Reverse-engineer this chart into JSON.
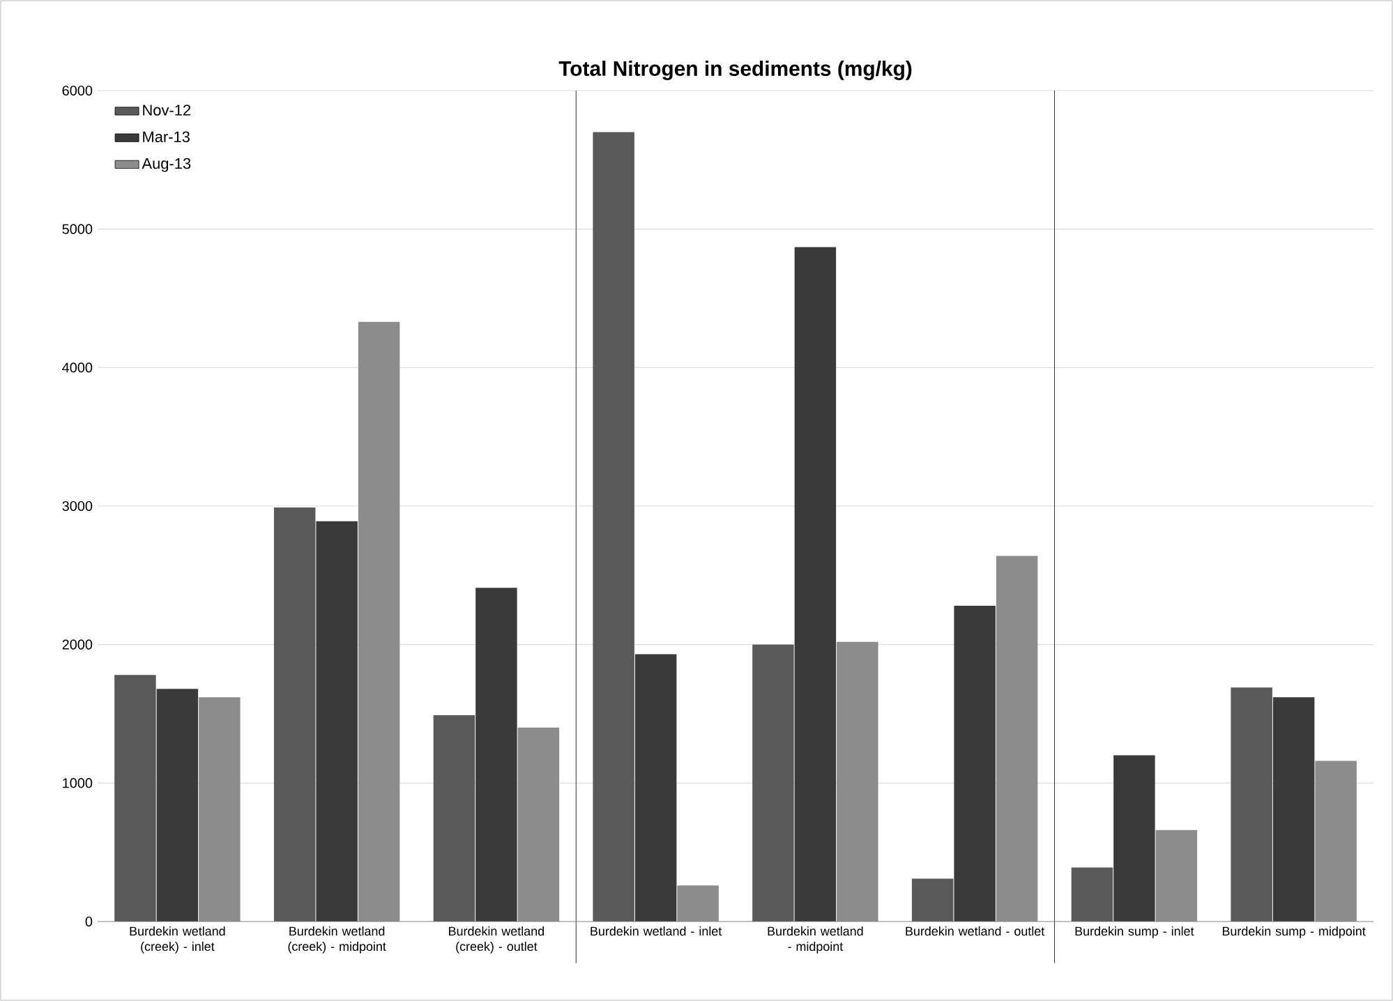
{
  "chart_data": {
    "type": "bar",
    "title": "Total Nitrogen in sediments (mg/kg)",
    "categories": [
      "Burdekin wetland (creek) - inlet",
      "Burdekin wetland (creek) - midpoint",
      "Burdekin wetland (creek) - outlet",
      "Burdekin wetland - inlet",
      "Burdekin wetland - midpoint",
      "Burdekin wetland - outlet",
      "Burdekin sump - inlet",
      "Burdekin sump - midpoint"
    ],
    "series": [
      {
        "name": "Nov-12",
        "color": "#595959",
        "values": [
          1780,
          2990,
          1490,
          5700,
          2000,
          310,
          390,
          1690
        ]
      },
      {
        "name": "Mar-13",
        "color": "#3a3a3a",
        "values": [
          1680,
          2890,
          2410,
          1930,
          4870,
          2280,
          1200,
          1620
        ]
      },
      {
        "name": "Aug-13",
        "color": "#8c8c8c",
        "values": [
          1620,
          4330,
          1400,
          260,
          2020,
          2640,
          660,
          1160
        ]
      }
    ],
    "ylim": [
      0,
      6000
    ],
    "yticks": [
      0,
      1000,
      2000,
      3000,
      4000,
      5000,
      6000
    ],
    "grid": "y",
    "legend": "top left"
  }
}
